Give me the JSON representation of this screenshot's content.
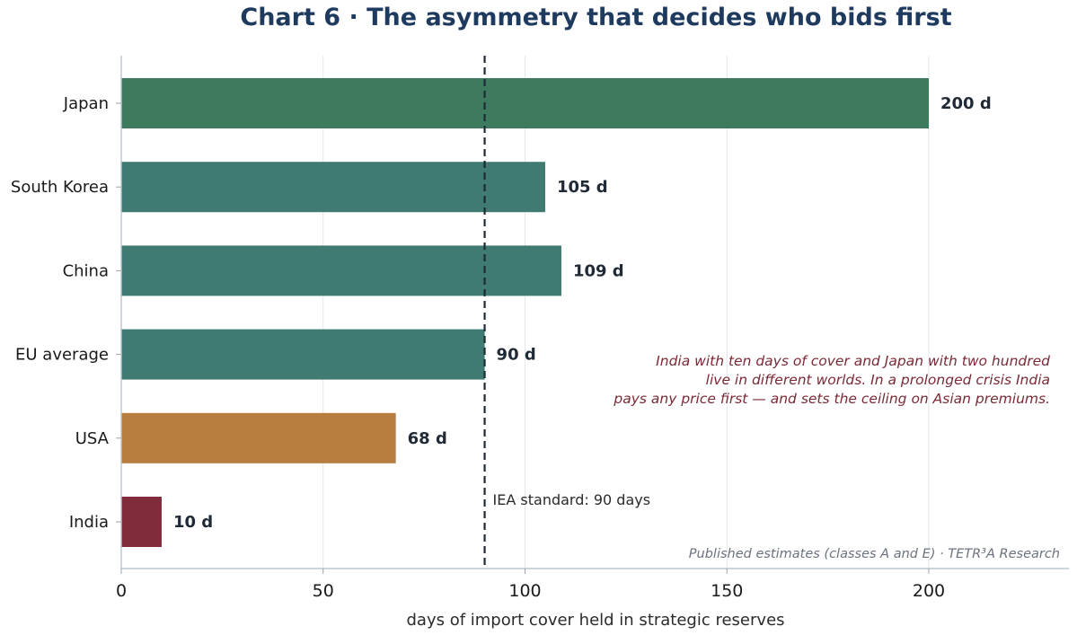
{
  "chart_data": {
    "type": "bar",
    "orientation": "horizontal",
    "title": "Chart 6 · The asymmetry that decides who bids first",
    "xlabel": "days of import cover held in strategic reserves",
    "ylabel": "",
    "xlim": [
      0,
      235
    ],
    "xticks": [
      0,
      50,
      100,
      150,
      200
    ],
    "grid": "vertical",
    "categories": [
      "Japan",
      "South Korea",
      "China",
      "EU average",
      "USA",
      "India"
    ],
    "values": [
      200,
      105,
      109,
      90,
      68,
      10
    ],
    "value_labels": [
      "200 d",
      "105 d",
      "109 d",
      "90 d",
      "68 d",
      "10 d"
    ],
    "colors": [
      "#3d7a5e",
      "#3f7b70",
      "#3f7b70",
      "#3f7b70",
      "#b87d3f",
      "#7f2b3a"
    ],
    "reference_line": {
      "value": 90,
      "label": "IEA standard: 90 days",
      "color": "#1f2a36"
    },
    "annotation": [
      "India with ten days of cover and Japan with two hundred",
      "live in different worlds. In a prolonged crisis India",
      "pays any price first — and sets the ceiling on Asian premiums."
    ],
    "source": "Published estimates (classes A and E) · TETR³A Research"
  }
}
